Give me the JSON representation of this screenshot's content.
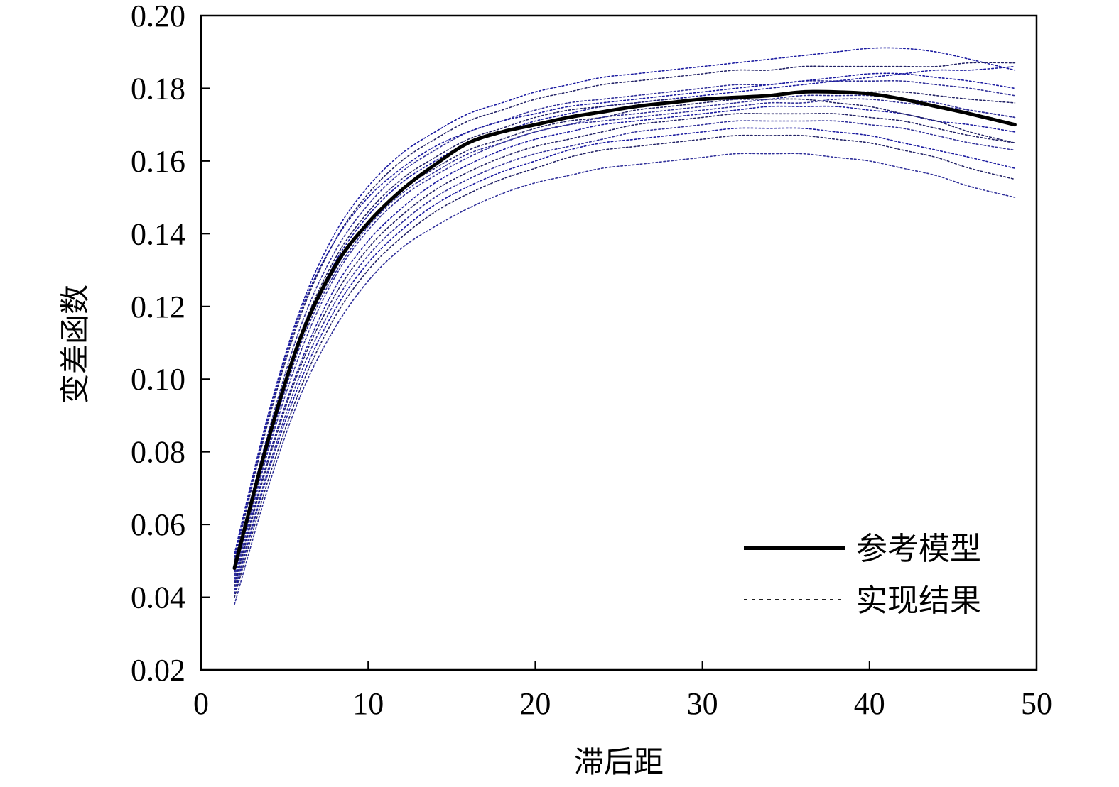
{
  "chart_data": {
    "type": "line",
    "title": "",
    "xlabel": "滞后距",
    "ylabel": "变差函数",
    "xlim": [
      0,
      50
    ],
    "ylim": [
      0.02,
      0.2
    ],
    "xticks": [
      0,
      10,
      20,
      30,
      40,
      50
    ],
    "xtick_labels": [
      "0",
      "10",
      "20",
      "30",
      "40",
      "50"
    ],
    "yticks": [
      0.02,
      0.04,
      0.06,
      0.08,
      0.1,
      0.12,
      0.14,
      0.16,
      0.18,
      0.2
    ],
    "ytick_labels": [
      "0.02",
      "0.04",
      "0.06",
      "0.08",
      "0.10",
      "0.12",
      "0.14",
      "0.16",
      "0.18",
      "0.20"
    ],
    "grid": false,
    "legend_position": "bottom-right",
    "legend": [
      {
        "label": "参考模型",
        "style": "solid"
      },
      {
        "label": "实现结果",
        "style": "dotted"
      }
    ],
    "colors": {
      "reference": "#000000",
      "realizations": "#1a1aa0"
    },
    "x": [
      2,
      4,
      6,
      8,
      10,
      12,
      14,
      16,
      18,
      20,
      22,
      24,
      26,
      28,
      30,
      32,
      34,
      36,
      38,
      40,
      42,
      44,
      46,
      48.7
    ],
    "reference": {
      "name": "参考模型",
      "values": [
        0.048,
        0.083,
        0.112,
        0.131,
        0.143,
        0.152,
        0.159,
        0.165,
        0.168,
        0.17,
        0.172,
        0.1735,
        0.175,
        0.176,
        0.177,
        0.1775,
        0.178,
        0.179,
        0.179,
        0.1785,
        0.177,
        0.175,
        0.173,
        0.17
      ]
    },
    "realizations": [
      {
        "values": [
          0.052,
          0.09,
          0.12,
          0.14,
          0.153,
          0.162,
          0.168,
          0.173,
          0.176,
          0.179,
          0.181,
          0.183,
          0.184,
          0.185,
          0.186,
          0.187,
          0.188,
          0.189,
          0.19,
          0.191,
          0.191,
          0.19,
          0.188,
          0.185
        ]
      },
      {
        "values": [
          0.05,
          0.088,
          0.118,
          0.138,
          0.151,
          0.16,
          0.166,
          0.171,
          0.174,
          0.177,
          0.179,
          0.181,
          0.182,
          0.183,
          0.184,
          0.185,
          0.185,
          0.186,
          0.186,
          0.186,
          0.186,
          0.186,
          0.187,
          0.187
        ]
      },
      {
        "values": [
          0.049,
          0.085,
          0.115,
          0.135,
          0.148,
          0.157,
          0.163,
          0.168,
          0.171,
          0.174,
          0.176,
          0.177,
          0.178,
          0.179,
          0.18,
          0.181,
          0.181,
          0.182,
          0.182,
          0.182,
          0.182,
          0.181,
          0.18,
          0.178
        ]
      },
      {
        "values": [
          0.047,
          0.083,
          0.112,
          0.132,
          0.145,
          0.154,
          0.16,
          0.165,
          0.168,
          0.171,
          0.173,
          0.175,
          0.176,
          0.177,
          0.178,
          0.179,
          0.18,
          0.181,
          0.182,
          0.183,
          0.184,
          0.185,
          0.185,
          0.186
        ]
      },
      {
        "values": [
          0.046,
          0.082,
          0.111,
          0.13,
          0.143,
          0.152,
          0.158,
          0.163,
          0.166,
          0.169,
          0.171,
          0.172,
          0.174,
          0.175,
          0.176,
          0.177,
          0.178,
          0.179,
          0.179,
          0.179,
          0.179,
          0.178,
          0.177,
          0.176
        ]
      },
      {
        "values": [
          0.045,
          0.08,
          0.108,
          0.128,
          0.141,
          0.15,
          0.156,
          0.161,
          0.165,
          0.168,
          0.17,
          0.171,
          0.172,
          0.173,
          0.174,
          0.175,
          0.176,
          0.176,
          0.177,
          0.177,
          0.176,
          0.175,
          0.174,
          0.172
        ]
      },
      {
        "values": [
          0.044,
          0.078,
          0.105,
          0.125,
          0.138,
          0.147,
          0.154,
          0.159,
          0.163,
          0.166,
          0.168,
          0.17,
          0.171,
          0.172,
          0.173,
          0.174,
          0.175,
          0.175,
          0.175,
          0.174,
          0.173,
          0.171,
          0.17,
          0.168
        ]
      },
      {
        "values": [
          0.043,
          0.077,
          0.104,
          0.123,
          0.136,
          0.145,
          0.152,
          0.157,
          0.161,
          0.164,
          0.166,
          0.168,
          0.17,
          0.171,
          0.172,
          0.173,
          0.173,
          0.173,
          0.173,
          0.172,
          0.171,
          0.169,
          0.167,
          0.165
        ]
      },
      {
        "values": [
          0.042,
          0.075,
          0.102,
          0.121,
          0.134,
          0.143,
          0.15,
          0.155,
          0.159,
          0.162,
          0.164,
          0.166,
          0.168,
          0.169,
          0.17,
          0.171,
          0.171,
          0.171,
          0.171,
          0.17,
          0.169,
          0.167,
          0.165,
          0.163
        ]
      },
      {
        "values": [
          0.041,
          0.074,
          0.1,
          0.119,
          0.132,
          0.141,
          0.148,
          0.153,
          0.157,
          0.16,
          0.163,
          0.165,
          0.166,
          0.167,
          0.168,
          0.169,
          0.169,
          0.169,
          0.168,
          0.167,
          0.165,
          0.163,
          0.161,
          0.158
        ]
      },
      {
        "values": [
          0.04,
          0.072,
          0.098,
          0.117,
          0.13,
          0.139,
          0.146,
          0.151,
          0.155,
          0.158,
          0.161,
          0.163,
          0.164,
          0.165,
          0.166,
          0.167,
          0.167,
          0.167,
          0.166,
          0.165,
          0.163,
          0.161,
          0.158,
          0.155
        ]
      },
      {
        "values": [
          0.038,
          0.07,
          0.096,
          0.114,
          0.127,
          0.136,
          0.142,
          0.147,
          0.151,
          0.154,
          0.156,
          0.158,
          0.159,
          0.16,
          0.161,
          0.162,
          0.162,
          0.162,
          0.161,
          0.16,
          0.158,
          0.156,
          0.153,
          0.15
        ]
      },
      {
        "values": [
          0.051,
          0.089,
          0.119,
          0.138,
          0.15,
          0.158,
          0.164,
          0.168,
          0.171,
          0.173,
          0.175,
          0.176,
          0.177,
          0.178,
          0.179,
          0.18,
          0.181,
          0.182,
          0.183,
          0.184,
          0.184,
          0.183,
          0.182,
          0.18
        ]
      },
      {
        "values": [
          0.048,
          0.084,
          0.113,
          0.133,
          0.146,
          0.155,
          0.161,
          0.166,
          0.169,
          0.172,
          0.174,
          0.175,
          0.176,
          0.177,
          0.177,
          0.177,
          0.177,
          0.177,
          0.176,
          0.175,
          0.173,
          0.171,
          0.168,
          0.165
        ]
      },
      {
        "values": [
          0.046,
          0.081,
          0.11,
          0.129,
          0.142,
          0.151,
          0.157,
          0.162,
          0.165,
          0.168,
          0.17,
          0.172,
          0.173,
          0.174,
          0.175,
          0.176,
          0.177,
          0.178,
          0.178,
          0.178,
          0.177,
          0.176,
          0.174,
          0.172
        ]
      }
    ]
  }
}
